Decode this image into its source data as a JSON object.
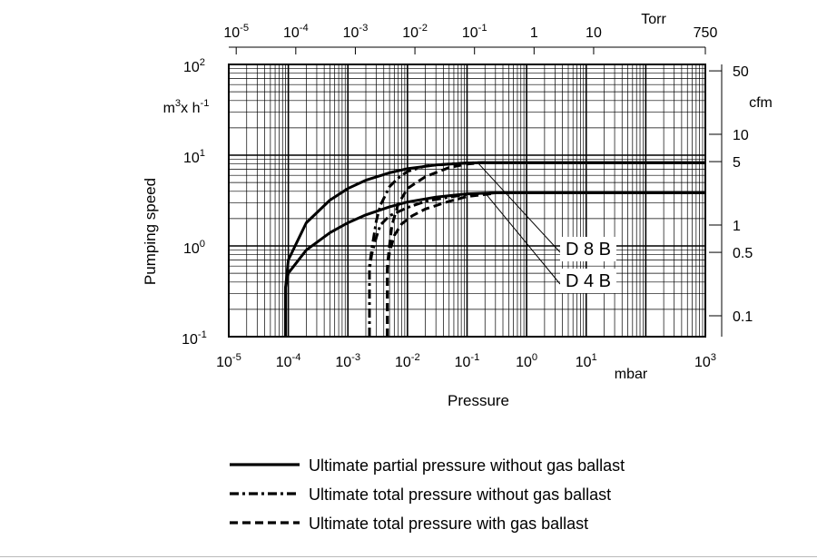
{
  "chart_data": {
    "type": "line",
    "ylabel": "Pumping speed",
    "xlabel": "Pressure",
    "x_scale": "log",
    "y_scale": "log",
    "xlim": [
      1e-05,
      1000
    ],
    "ylim": [
      0.1,
      100
    ],
    "grid": true,
    "x_unit": "mbar",
    "top_unit": "Torr",
    "left_unit_base": "m",
    "left_unit_sup": "3",
    "left_unit_mid": "x h",
    "left_unit_sup2": "-1",
    "right_unit": "cfm",
    "x_ticks": [
      {
        "base": "10",
        "exp": "-5",
        "value": 1e-05
      },
      {
        "base": "10",
        "exp": "-4",
        "value": 0.0001
      },
      {
        "base": "10",
        "exp": "-3",
        "value": 0.001
      },
      {
        "base": "10",
        "exp": "-2",
        "value": 0.01
      },
      {
        "base": "10",
        "exp": "-1",
        "value": 0.1
      },
      {
        "base": "10",
        "exp": "0",
        "value": 1
      },
      {
        "base": "10",
        "exp": "1",
        "value": 10
      },
      {
        "base": "10",
        "exp": "3",
        "value": 1000
      }
    ],
    "y_ticks": [
      {
        "base": "10",
        "exp": "-1",
        "value": 0.1
      },
      {
        "base": "10",
        "exp": "0",
        "value": 1
      },
      {
        "base": "10",
        "exp": "1",
        "value": 10
      },
      {
        "base": "10",
        "exp": "2",
        "value": 100
      }
    ],
    "top_ticks": [
      {
        "base": "10",
        "exp": "-5",
        "value": 1e-05
      },
      {
        "base": "10",
        "exp": "-4",
        "value": 0.0001
      },
      {
        "base": "10",
        "exp": "-3",
        "value": 0.001
      },
      {
        "base": "10",
        "exp": "-2",
        "value": 0.01
      },
      {
        "base": "10",
        "exp": "-1",
        "value": 0.1
      },
      {
        "base": "",
        "exp": "",
        "text": "1",
        "value": 1
      },
      {
        "base": "",
        "exp": "",
        "text": "10",
        "value": 10
      },
      {
        "base": "",
        "exp": "",
        "text": "750",
        "value": 750
      }
    ],
    "right_ticks": [
      {
        "label": "50",
        "value": 50
      },
      {
        "label": "10",
        "value": 10
      },
      {
        "label": "5",
        "value": 5
      },
      {
        "label": "1",
        "value": 1
      },
      {
        "label": "0.5",
        "value": 0.5
      },
      {
        "label": "0.1",
        "value": 0.1
      }
    ],
    "series": [
      {
        "name": "D 8 B",
        "style": "solid",
        "points": [
          [
            9e-05,
            0.1
          ],
          [
            9e-05,
            0.35
          ],
          [
            0.0001,
            0.7
          ],
          [
            0.0002,
            1.8
          ],
          [
            0.0005,
            3.2
          ],
          [
            0.001,
            4.3
          ],
          [
            0.002,
            5.3
          ],
          [
            0.005,
            6.4
          ],
          [
            0.01,
            7.1
          ],
          [
            0.03,
            7.8
          ],
          [
            0.1,
            8.2
          ],
          [
            0.2,
            8.3
          ],
          [
            1000,
            8.3
          ]
        ]
      },
      {
        "name": "D 4 B",
        "style": "solid",
        "points": [
          [
            9e-05,
            0.1
          ],
          [
            9e-05,
            0.35
          ],
          [
            0.0001,
            0.5
          ],
          [
            0.0002,
            0.9
          ],
          [
            0.0005,
            1.4
          ],
          [
            0.001,
            1.8
          ],
          [
            0.002,
            2.2
          ],
          [
            0.005,
            2.7
          ],
          [
            0.01,
            3.05
          ],
          [
            0.03,
            3.45
          ],
          [
            0.1,
            3.75
          ],
          [
            0.3,
            3.85
          ],
          [
            1000,
            3.85
          ]
        ]
      },
      {
        "style": "dashdot",
        "points": [
          [
            0.0023,
            0.1
          ],
          [
            0.0023,
            0.6
          ],
          [
            0.0025,
            0.9
          ],
          [
            0.003,
            1.9
          ],
          [
            0.0035,
            2.8
          ],
          [
            0.005,
            4.5
          ],
          [
            0.007,
            5.6
          ],
          [
            0.01,
            6.6
          ],
          [
            0.02,
            7.6
          ],
          [
            0.05,
            8.0
          ],
          [
            0.1,
            8.2
          ],
          [
            0.2,
            8.3
          ]
        ]
      },
      {
        "style": "dashdot",
        "points": [
          [
            0.0023,
            0.1
          ],
          [
            0.0023,
            0.55
          ],
          [
            0.0025,
            0.8
          ],
          [
            0.003,
            1.25
          ],
          [
            0.0035,
            1.7
          ],
          [
            0.005,
            2.15
          ],
          [
            0.01,
            2.65
          ],
          [
            0.02,
            3.1
          ],
          [
            0.05,
            3.45
          ],
          [
            0.1,
            3.7
          ],
          [
            0.3,
            3.85
          ]
        ]
      },
      {
        "style": "dashed",
        "points": [
          [
            0.0046,
            0.1
          ],
          [
            0.0046,
            0.6
          ],
          [
            0.0049,
            0.9
          ],
          [
            0.0055,
            1.7
          ],
          [
            0.007,
            2.9
          ],
          [
            0.01,
            4.3
          ],
          [
            0.02,
            5.8
          ],
          [
            0.05,
            7.3
          ],
          [
            0.1,
            8.0
          ],
          [
            0.2,
            8.3
          ]
        ]
      },
      {
        "style": "dashed",
        "points": [
          [
            0.0046,
            0.1
          ],
          [
            0.0046,
            0.55
          ],
          [
            0.005,
            0.85
          ],
          [
            0.006,
            1.3
          ],
          [
            0.008,
            1.75
          ],
          [
            0.012,
            2.15
          ],
          [
            0.02,
            2.55
          ],
          [
            0.05,
            3.1
          ],
          [
            0.1,
            3.5
          ],
          [
            0.3,
            3.8
          ]
        ]
      }
    ],
    "annotations": [
      {
        "text": "D 8 B",
        "target_series": "D 8 B",
        "from": [
          0.15,
          8.3
        ]
      },
      {
        "text": "D 4 B",
        "target_series": "D 4 B",
        "from": [
          0.2,
          3.85
        ]
      }
    ],
    "legend": {
      "placement": "bottom-center",
      "entries": [
        {
          "style": "solid",
          "label": "Ultimate partial pressure without gas ballast"
        },
        {
          "style": "dashdot",
          "label": "Ultimate total pressure without gas ballast"
        },
        {
          "style": "dashed",
          "label": "Ultimate total pressure with gas ballast"
        }
      ]
    }
  }
}
